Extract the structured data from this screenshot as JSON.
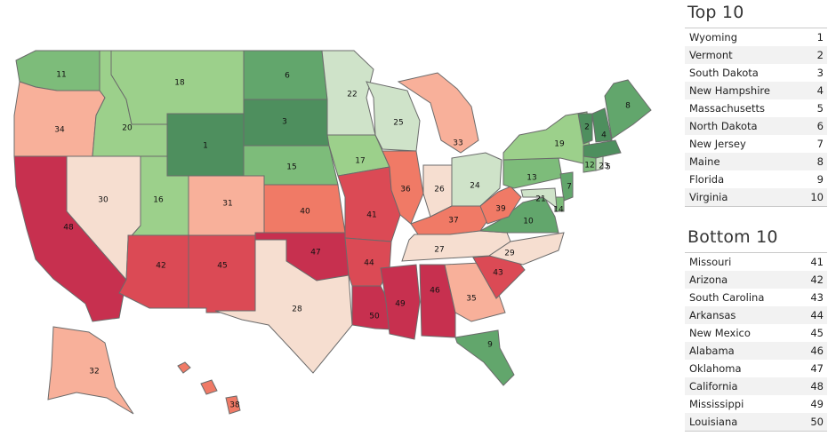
{
  "colors": {
    "rank_scale": [
      "#4e8f5e",
      "#62a66c",
      "#7dbc7a",
      "#9cd08b",
      "#cfe3c9",
      "#f6ded0",
      "#f8b09a",
      "#f07a66",
      "#db4a55",
      "#c7304f"
    ],
    "state_border": "#6b6b6b",
    "row_alt": "#f2f2f2"
  },
  "map": {
    "states": [
      {
        "code": "WA",
        "rank": 11
      },
      {
        "code": "OR",
        "rank": 34
      },
      {
        "code": "CA",
        "rank": 48
      },
      {
        "code": "NV",
        "rank": 30
      },
      {
        "code": "ID",
        "rank": 20
      },
      {
        "code": "MT",
        "rank": 18
      },
      {
        "code": "WY",
        "rank": 1
      },
      {
        "code": "UT",
        "rank": 16
      },
      {
        "code": "AZ",
        "rank": 42
      },
      {
        "code": "CO",
        "rank": 31
      },
      {
        "code": "NM",
        "rank": 45
      },
      {
        "code": "ND",
        "rank": 6
      },
      {
        "code": "SD",
        "rank": 3
      },
      {
        "code": "NE",
        "rank": 15
      },
      {
        "code": "KS",
        "rank": 40
      },
      {
        "code": "OK",
        "rank": 47
      },
      {
        "code": "TX",
        "rank": 28
      },
      {
        "code": "MN",
        "rank": 22
      },
      {
        "code": "IA",
        "rank": 17
      },
      {
        "code": "MO",
        "rank": 41
      },
      {
        "code": "AR",
        "rank": 44
      },
      {
        "code": "LA",
        "rank": 50
      },
      {
        "code": "WI",
        "rank": 25
      },
      {
        "code": "IL",
        "rank": 36
      },
      {
        "code": "MI",
        "rank": 33
      },
      {
        "code": "IN",
        "rank": 26
      },
      {
        "code": "OH",
        "rank": 24
      },
      {
        "code": "KY",
        "rank": 37
      },
      {
        "code": "TN",
        "rank": 27
      },
      {
        "code": "MS",
        "rank": 49
      },
      {
        "code": "AL",
        "rank": 46
      },
      {
        "code": "GA",
        "rank": 35
      },
      {
        "code": "FL",
        "rank": 9
      },
      {
        "code": "SC",
        "rank": 43
      },
      {
        "code": "NC",
        "rank": 29
      },
      {
        "code": "VA",
        "rank": 10
      },
      {
        "code": "WV",
        "rank": 39
      },
      {
        "code": "PA",
        "rank": 13
      },
      {
        "code": "NY",
        "rank": 19
      },
      {
        "code": "VT",
        "rank": 2
      },
      {
        "code": "NH",
        "rank": 4
      },
      {
        "code": "ME",
        "rank": 8
      },
      {
        "code": "MA",
        "rank": 5
      },
      {
        "code": "CT",
        "rank": 12
      },
      {
        "code": "RI",
        "rank": 23
      },
      {
        "code": "NJ",
        "rank": 7
      },
      {
        "code": "DE",
        "rank": 14
      },
      {
        "code": "MD",
        "rank": 21
      },
      {
        "code": "AK",
        "rank": 32
      },
      {
        "code": "HI",
        "rank": 38
      }
    ]
  },
  "top10": {
    "title": "Top 10",
    "rows": [
      {
        "state": "Wyoming",
        "rank": "1"
      },
      {
        "state": "Vermont",
        "rank": "2"
      },
      {
        "state": "South Dakota",
        "rank": "3"
      },
      {
        "state": "New Hampshire",
        "rank": "4"
      },
      {
        "state": "Massachusetts",
        "rank": "5"
      },
      {
        "state": "North Dakota",
        "rank": "6"
      },
      {
        "state": "New Jersey",
        "rank": "7"
      },
      {
        "state": "Maine",
        "rank": "8"
      },
      {
        "state": "Florida",
        "rank": "9"
      },
      {
        "state": "Virginia",
        "rank": "10"
      }
    ]
  },
  "bottom10": {
    "title": "Bottom 10",
    "rows": [
      {
        "state": "Missouri",
        "rank": "41"
      },
      {
        "state": "Arizona",
        "rank": "42"
      },
      {
        "state": "South Carolina",
        "rank": "43"
      },
      {
        "state": "Arkansas",
        "rank": "44"
      },
      {
        "state": "New Mexico",
        "rank": "45"
      },
      {
        "state": "Alabama",
        "rank": "46"
      },
      {
        "state": "Oklahoma",
        "rank": "47"
      },
      {
        "state": "California",
        "rank": "48"
      },
      {
        "state": "Mississippi",
        "rank": "49"
      },
      {
        "state": "Louisiana",
        "rank": "50"
      }
    ]
  }
}
